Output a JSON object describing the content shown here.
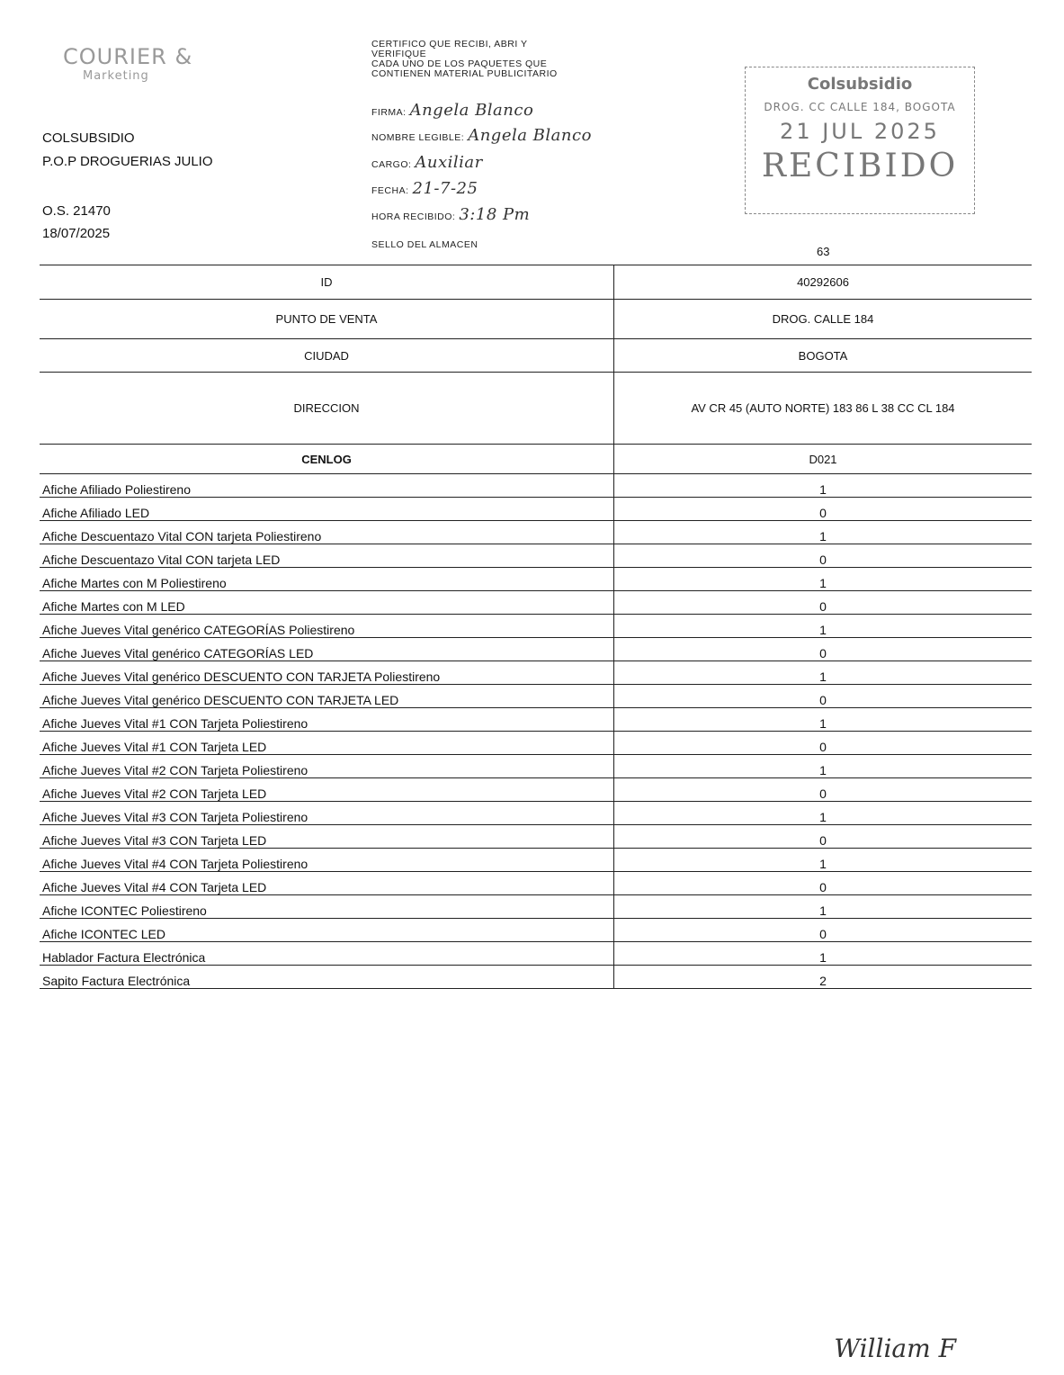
{
  "logo": {
    "name": "COURIER",
    "sub": "Marketing"
  },
  "header": {
    "company": "COLSUBSIDIO",
    "project": "P.O.P DROGUERIAS JULIO",
    "os": "O.S. 21470",
    "date": "18/07/2025"
  },
  "certification": {
    "text": [
      "CERTIFICO QUE RECIBI, ABRI Y",
      "VERIFIQUE",
      "CADA UNO DE LOS PAQUETES QUE",
      "CONTIENEN MATERIAL PUBLICITARIO"
    ],
    "firma_label": "FIRMA:",
    "firma_value": "Angela Blanco",
    "nombre_label": "NOMBRE LEGIBLE:",
    "nombre_value": "Angela Blanco",
    "cargo_label": "CARGO:",
    "cargo_value": "Auxiliar",
    "fecha_label": "FECHA:",
    "fecha_value": "21-7-25",
    "hora_label": "HORA RECIBIDO:",
    "hora_value": "3:18 Pm",
    "sello_label": "SELLO DEL ALMACEN"
  },
  "stamp": {
    "brand": "Colsubsidio",
    "location": "DROG. CC CALLE 184, BOGOTA",
    "date": "21 JUL 2025",
    "status": "RECIBIDO"
  },
  "page_number": "63",
  "info": [
    {
      "label": "ID",
      "value": "40292606"
    },
    {
      "label": "PUNTO DE VENTA",
      "value": "DROG. CALLE 184"
    },
    {
      "label": "CIUDAD",
      "value": "BOGOTA"
    },
    {
      "label": "DIRECCION",
      "value": "AV CR 45 (AUTO NORTE) 183 86 L 38 CC CL 184"
    },
    {
      "label": "CENLOG",
      "value": "D021"
    }
  ],
  "items": [
    {
      "name": "Afiche Afiliado Poliestireno",
      "qty": "1"
    },
    {
      "name": "Afiche Afiliado LED",
      "qty": "0"
    },
    {
      "name": "Afiche Descuentazo Vital CON tarjeta Poliestireno",
      "qty": "1"
    },
    {
      "name": "Afiche Descuentazo Vital CON tarjeta LED",
      "qty": "0"
    },
    {
      "name": "Afiche Martes con M  Poliestireno",
      "qty": "1"
    },
    {
      "name": "Afiche Martes con M  LED",
      "qty": "0"
    },
    {
      "name": "Afiche Jueves Vital genérico CATEGORÍAS Poliestireno",
      "qty": "1"
    },
    {
      "name": "Afiche Jueves Vital genérico CATEGORÍAS LED",
      "qty": "0"
    },
    {
      "name": "Afiche Jueves Vital genérico DESCUENTO CON TARJETA Poliestireno",
      "qty": "1"
    },
    {
      "name": "Afiche Jueves Vital genérico DESCUENTO CON TARJETA LED",
      "qty": "0"
    },
    {
      "name": "Afiche Jueves Vital #1 CON Tarjeta Poliestireno",
      "qty": "1"
    },
    {
      "name": "Afiche Jueves Vital #1 CON Tarjeta  LED",
      "qty": "0"
    },
    {
      "name": "Afiche Jueves Vital #2 CON Tarjeta Poliestireno",
      "qty": "1"
    },
    {
      "name": "Afiche Jueves Vital #2 CON Tarjeta  LED",
      "qty": "0"
    },
    {
      "name": "Afiche Jueves Vital #3 CON Tarjeta Poliestireno",
      "qty": "1"
    },
    {
      "name": "Afiche Jueves Vital #3 CON Tarjeta  LED",
      "qty": "0"
    },
    {
      "name": "Afiche Jueves Vital #4 CON Tarjeta Poliestireno",
      "qty": "1"
    },
    {
      "name": "Afiche Jueves Vital #4 CON Tarjeta LED",
      "qty": "0"
    },
    {
      "name": "Afiche ICONTEC Poliestireno",
      "qty": "1"
    },
    {
      "name": "Afiche ICONTEC LED",
      "qty": "0"
    },
    {
      "name": "Hablador Factura Electrónica",
      "qty": "1"
    },
    {
      "name": "Sapito Factura Electrónica",
      "qty": "2"
    }
  ],
  "signature": "William F"
}
